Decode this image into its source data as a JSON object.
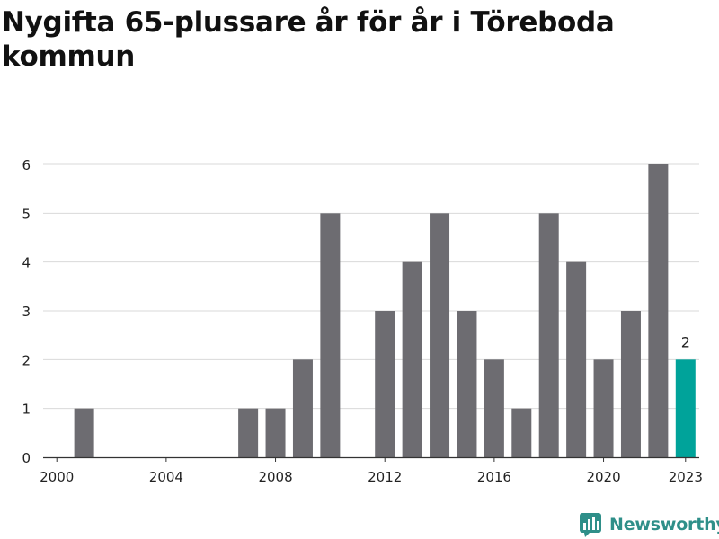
{
  "title": "Nygifta 65-plussare år för år i Töreboda kommun",
  "brand": {
    "name": "Newsworthy",
    "icon": "bar-chart-logo-icon"
  },
  "colors": {
    "bar": "#6d6c71",
    "highlight": "#00a39a",
    "grid": "#d9d9d9",
    "brand": "#2f8f89"
  },
  "chart_data": {
    "type": "bar",
    "categories": [
      "2000",
      "2001",
      "2002",
      "2003",
      "2004",
      "2005",
      "2006",
      "2007",
      "2008",
      "2009",
      "2010",
      "2011",
      "2012",
      "2013",
      "2014",
      "2015",
      "2016",
      "2017",
      "2018",
      "2019",
      "2020",
      "2021",
      "2022",
      "2023"
    ],
    "values": [
      0,
      1,
      0,
      0,
      0,
      0,
      0,
      1,
      1,
      2,
      5,
      0,
      3,
      4,
      5,
      3,
      2,
      1,
      5,
      4,
      2,
      3,
      6,
      2
    ],
    "highlight_category": "2023",
    "data_labels": [
      {
        "category": "2023",
        "text": "2"
      }
    ],
    "x_tick_labels": [
      "2000",
      "2004",
      "2008",
      "2012",
      "2016",
      "2020",
      "2023"
    ],
    "y_ticks": [
      0,
      1,
      2,
      3,
      4,
      5,
      6
    ],
    "ylim": [
      0,
      6
    ],
    "grid": true,
    "legend": "none",
    "xlabel": "",
    "ylabel": ""
  }
}
